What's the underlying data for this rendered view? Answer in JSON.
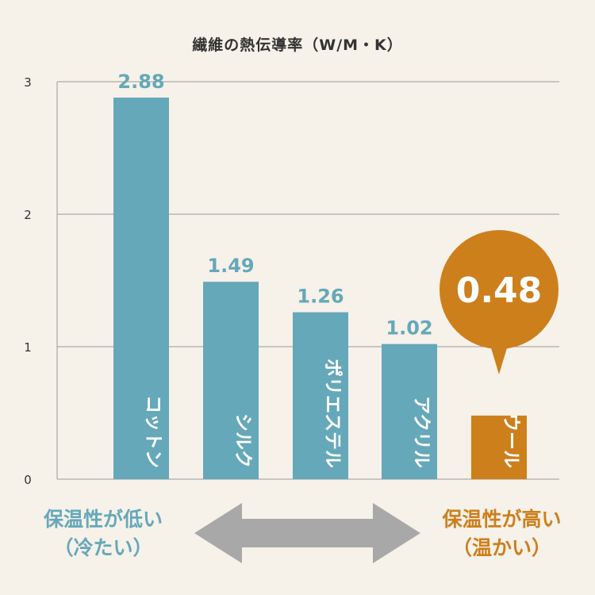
{
  "chart_data": {
    "type": "bar",
    "title": "繊維の熱伝導率（W/M・K）",
    "categories": [
      "コットン",
      "シルク",
      "ポリエステル",
      "アクリル",
      "ウール"
    ],
    "values": [
      2.88,
      1.49,
      1.26,
      1.02,
      0.48
    ],
    "value_labels": [
      "2.88",
      "1.49",
      "1.26",
      "1.02",
      "0.48"
    ],
    "ylim": [
      0,
      3
    ],
    "yticks": [
      "0",
      "1",
      "2",
      "3"
    ],
    "grid": true,
    "highlight_index": 4,
    "colors": {
      "bar": "#65a8b9",
      "highlight": "#cd7f1c",
      "grid": "#9a9a9a",
      "arrow": "#a8a8a8",
      "background": "#f6f1e9"
    }
  },
  "footer": {
    "left": {
      "line1": "保温性が低い",
      "line2": "（冷たい）"
    },
    "right": {
      "line1": "保温性が高い",
      "line2": "（温かい）"
    }
  }
}
